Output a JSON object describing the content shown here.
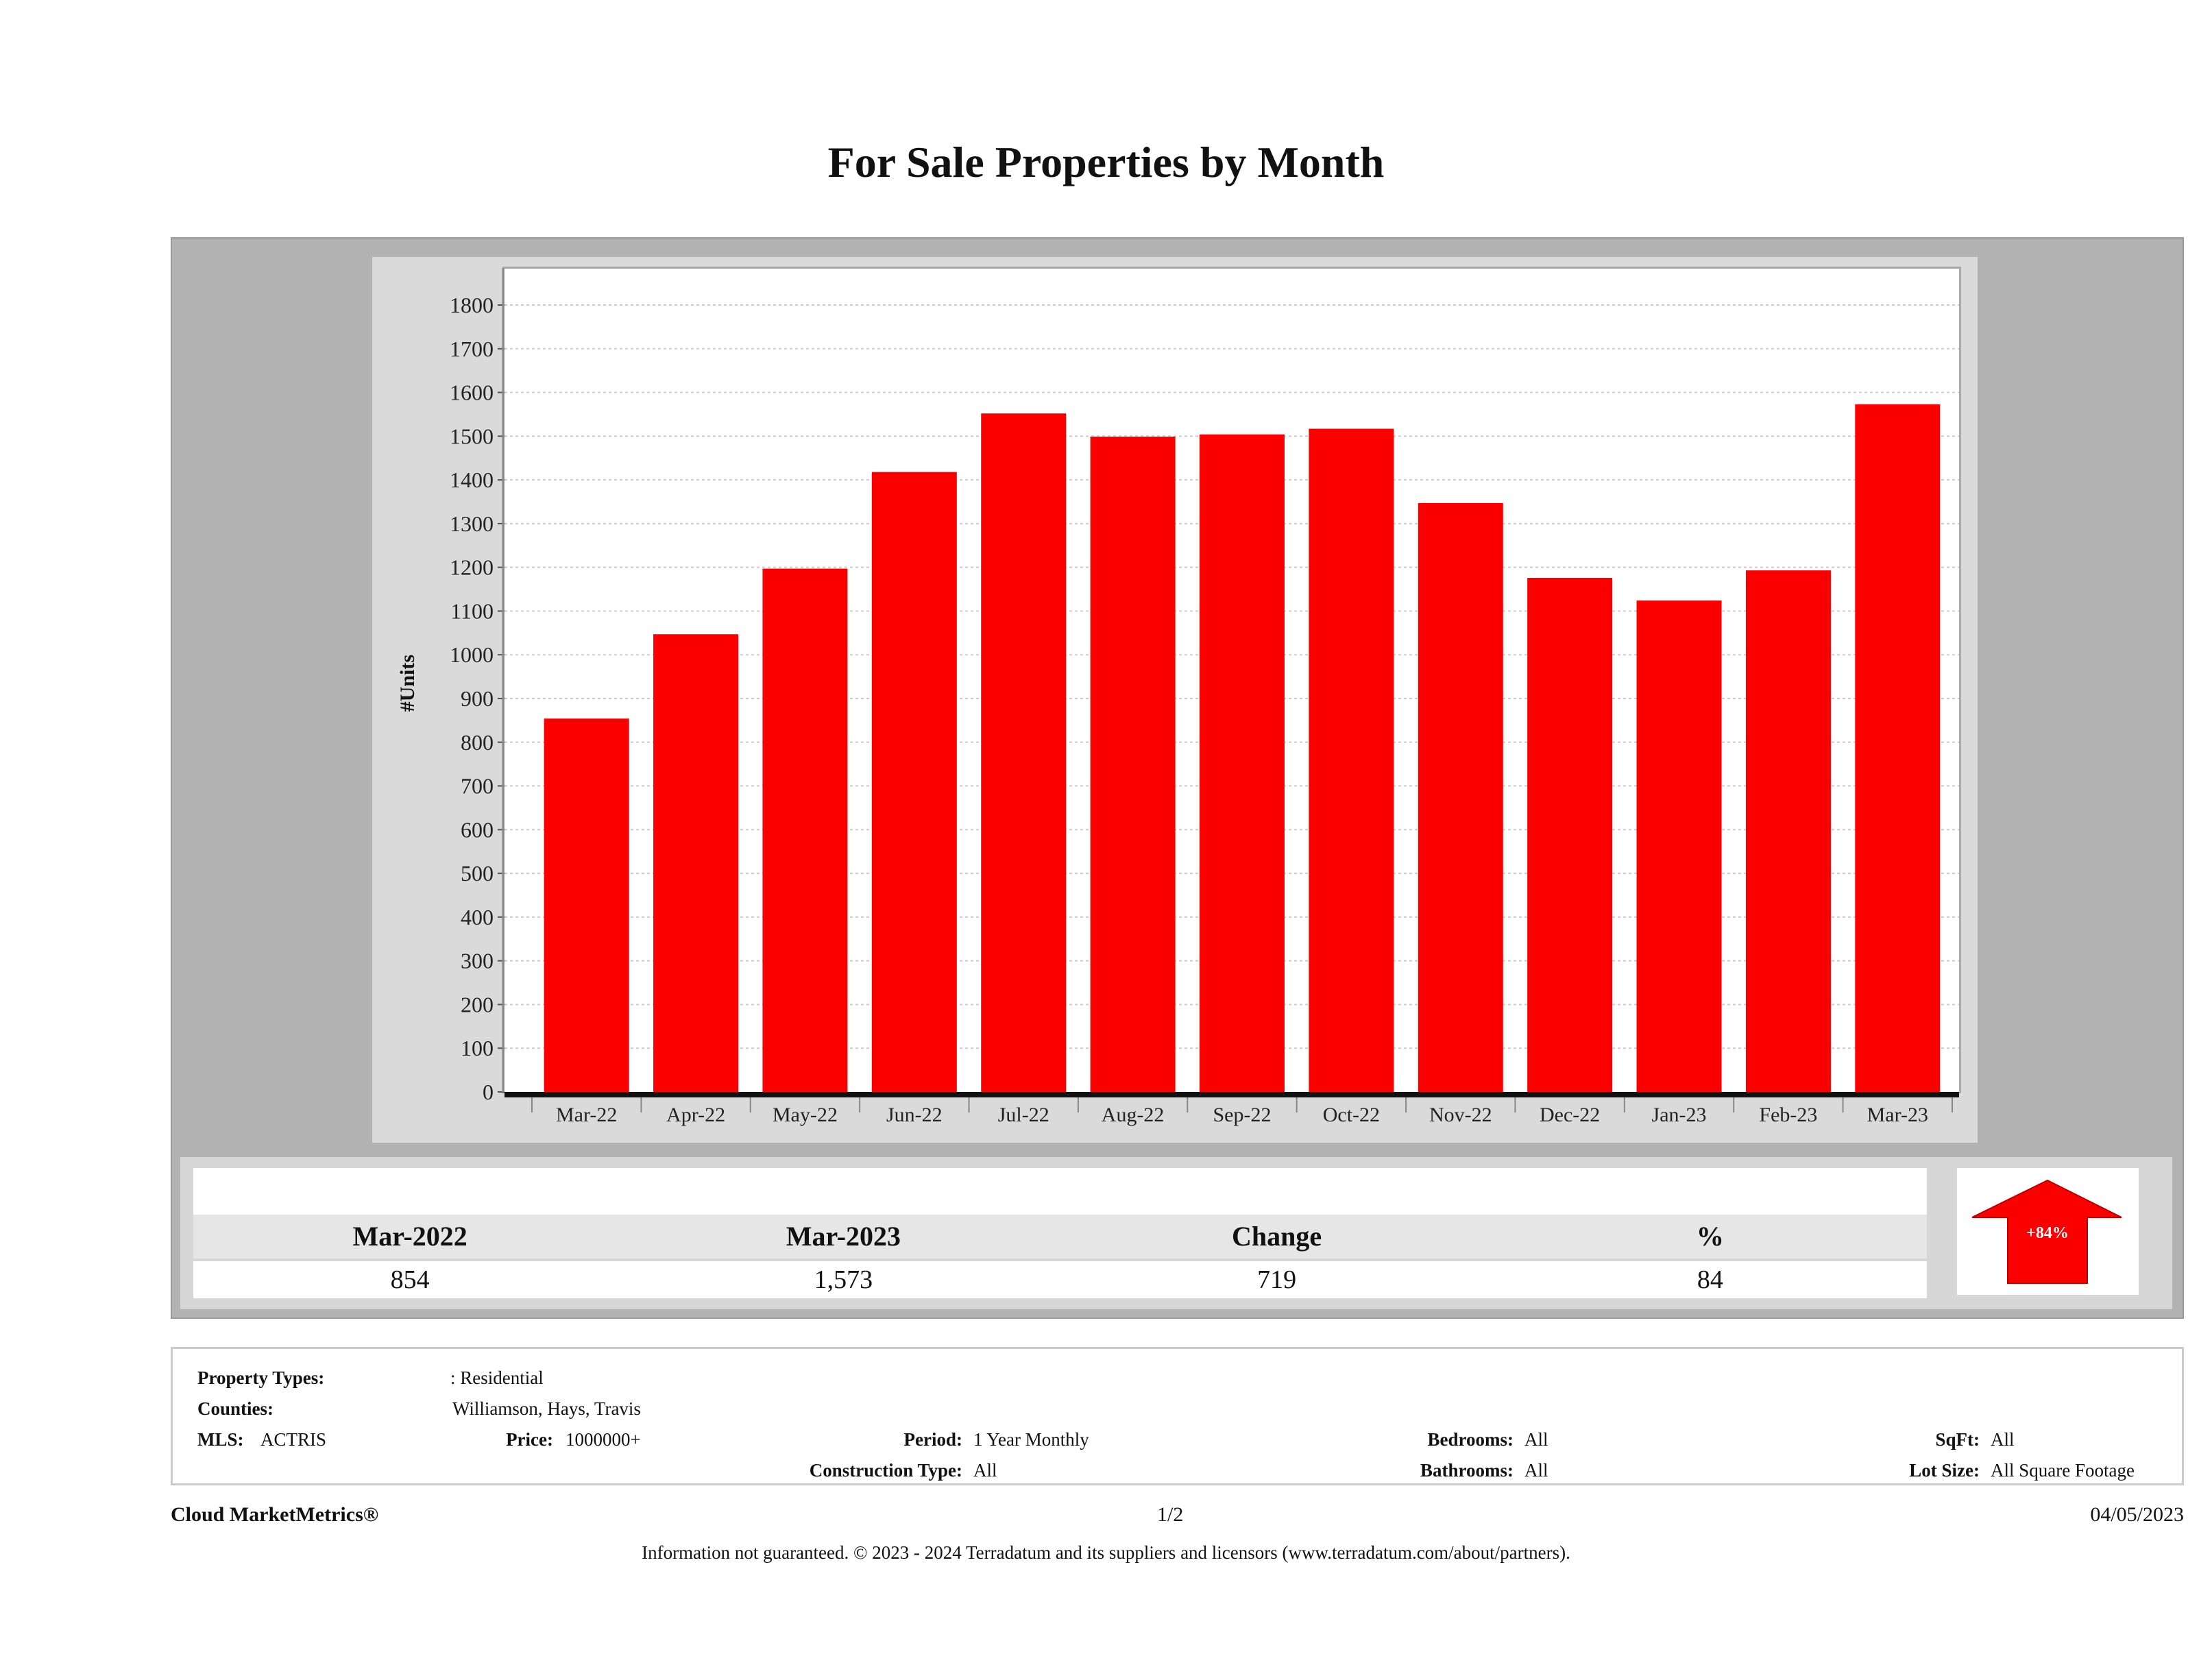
{
  "chart_data": {
    "type": "bar",
    "title": "For Sale Properties by Month",
    "xlabel": "",
    "ylabel": "#Units",
    "ylim": [
      0,
      1800
    ],
    "yticks": [
      0,
      100,
      200,
      300,
      400,
      500,
      600,
      700,
      800,
      900,
      1000,
      1100,
      1200,
      1300,
      1400,
      1500,
      1600,
      1700,
      1800
    ],
    "grid": true,
    "color": "#fa0000",
    "categories": [
      "Mar-22",
      "Apr-22",
      "May-22",
      "Jun-22",
      "Jul-22",
      "Aug-22",
      "Sep-22",
      "Oct-22",
      "Nov-22",
      "Dec-22",
      "Jan-23",
      "Feb-23",
      "Mar-23"
    ],
    "values": [
      854,
      1047,
      1197,
      1418,
      1552,
      1499,
      1504,
      1517,
      1347,
      1176,
      1124,
      1193,
      1573
    ]
  },
  "summary": {
    "headers": [
      "Mar-2022",
      "Mar-2023",
      "Change",
      "%"
    ],
    "values": [
      "854",
      "1,573",
      "719",
      "84"
    ],
    "badge": "+84%",
    "badge_color": "#fa0000"
  },
  "info": {
    "property_types_label": "Property Types:",
    "property_types": ": Residential",
    "counties_label": "Counties:",
    "counties": "Williamson, Hays, Travis",
    "mls_label": "MLS:",
    "mls": "ACTRIS",
    "price_label": "Price:",
    "price": "1000000+",
    "period_label": "Period:",
    "period": "1 Year Monthly",
    "construction_label": "Construction Type:",
    "construction": "All",
    "bedrooms_label": "Bedrooms:",
    "bedrooms": "All",
    "bathrooms_label": "Bathrooms:",
    "bathrooms": "All",
    "sqft_label": "SqFt:",
    "sqft": "All",
    "lot_label": "Lot Size:",
    "lot": "All Square Footage"
  },
  "footer": {
    "brand": "Cloud MarketMetrics®",
    "page": "1/2",
    "date": "04/05/2023",
    "disclaimer": "Information not guaranteed. © 2023 - 2024 Terradatum and its suppliers and licensors (www.terradatum.com/about/partners)."
  }
}
